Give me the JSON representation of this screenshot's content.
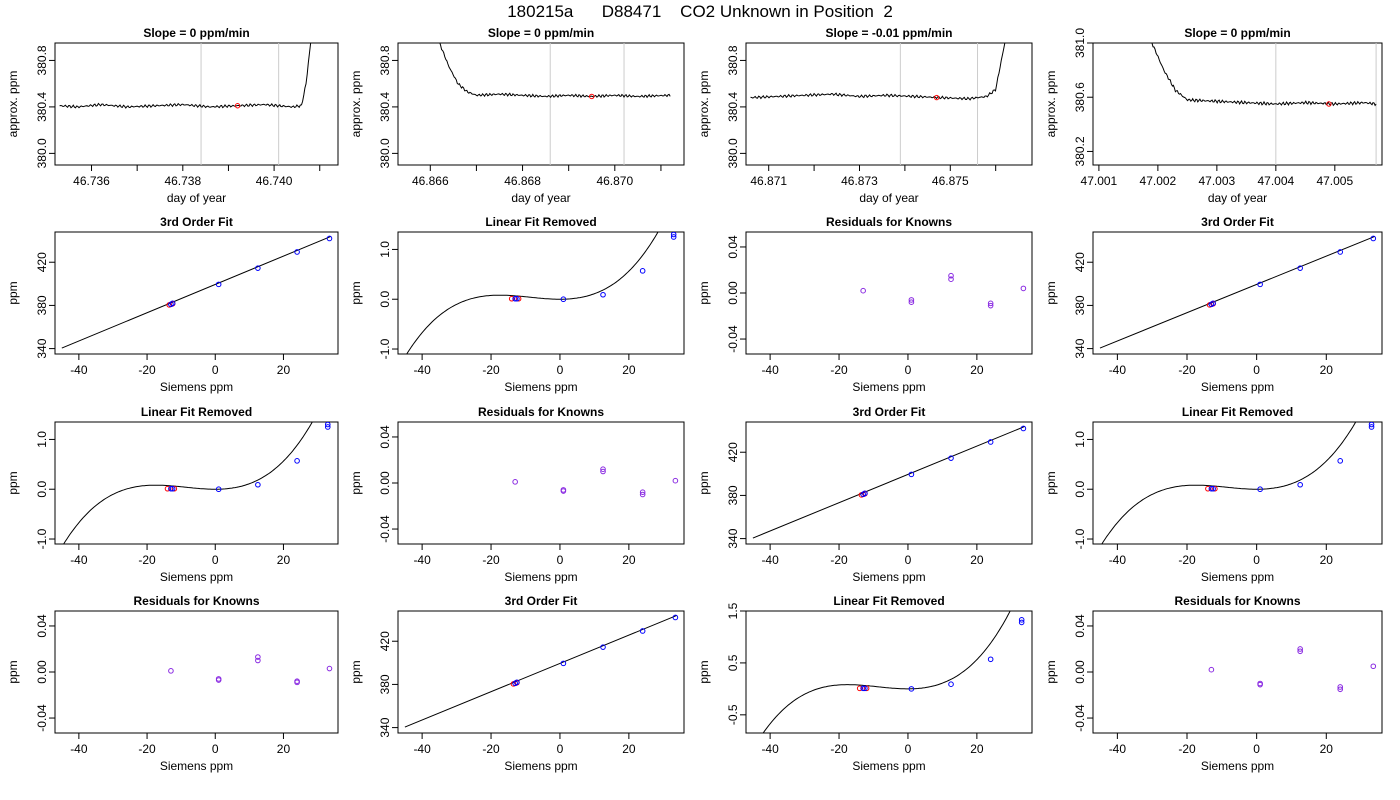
{
  "figure_title": "180215a      D88471    CO2 Unknown in Position  2",
  "chart_data": [
    {
      "type": "line",
      "title": "Slope =  0  ppm/min",
      "xlabel": "day of year",
      "ylabel": "approx. ppm",
      "xlim": [
        46.7352,
        46.7414
      ],
      "ylim": [
        379.9,
        380.95
      ],
      "xticks": [
        46.736,
        46.738,
        46.74
      ],
      "xtick_labels": [
        "46.736",
        "46.738",
        "46.740"
      ],
      "xminor_ticks": [
        46.737,
        46.739,
        46.741
      ],
      "yticks": [
        380.0,
        380.4,
        380.8
      ],
      "ytick_labels": [
        "380.0",
        "380.4",
        "380.8"
      ],
      "series": [
        {
          "x": [
            46.7353,
            46.7357,
            46.7362,
            46.7368,
            46.7374,
            46.738,
            46.7386,
            46.7392,
            46.7398,
            46.7404,
            46.7406,
            46.7407,
            46.7408
          ],
          "y": [
            380.41,
            380.4,
            380.42,
            380.4,
            380.41,
            380.42,
            380.4,
            380.41,
            380.42,
            380.4,
            380.41,
            380.6,
            380.95
          ]
        }
      ],
      "vlines": [
        46.7384,
        46.7401
      ],
      "marker": {
        "x": 46.7392,
        "y": 380.41
      }
    },
    {
      "type": "line",
      "title": "Slope =  0  ppm/min",
      "xlabel": "day of year",
      "ylabel": "approx. ppm",
      "xlim": [
        46.8653,
        46.8715
      ],
      "ylim": [
        379.9,
        380.95
      ],
      "xticks": [
        46.866,
        46.868,
        46.87
      ],
      "xtick_labels": [
        "46.866",
        "46.868",
        "46.870"
      ],
      "xminor_ticks": [
        46.867,
        46.869,
        46.871
      ],
      "yticks": [
        380.0,
        380.4,
        380.8
      ],
      "ytick_labels": [
        "380.0",
        "380.4",
        "380.8"
      ],
      "series": [
        {
          "x": [
            46.8662,
            46.8664,
            46.8666,
            46.8668,
            46.867,
            46.8675,
            46.868,
            46.8685,
            46.869,
            46.8695,
            46.87,
            46.8705,
            46.8712
          ],
          "y": [
            380.95,
            380.75,
            380.6,
            380.53,
            380.5,
            380.51,
            380.5,
            380.49,
            380.5,
            380.49,
            380.5,
            380.49,
            380.5
          ]
        }
      ],
      "vlines": [
        46.8686,
        46.8702
      ],
      "marker": {
        "x": 46.8695,
        "y": 380.49
      }
    },
    {
      "type": "line",
      "title": "Slope =  -0.01  ppm/min",
      "xlabel": "day of year",
      "ylabel": "approx. ppm",
      "xlim": [
        46.8705,
        46.8768
      ],
      "ylim": [
        379.9,
        380.95
      ],
      "xticks": [
        46.871,
        46.873,
        46.875
      ],
      "xtick_labels": [
        "46.871",
        "46.873",
        "46.875"
      ],
      "xminor_ticks": [
        46.872,
        46.874,
        46.876
      ],
      "yticks": [
        380.0,
        380.4,
        380.8
      ],
      "ytick_labels": [
        "380.0",
        "380.4",
        "380.8"
      ],
      "series": [
        {
          "x": [
            46.8706,
            46.8712,
            46.8718,
            46.8724,
            46.873,
            46.8736,
            46.8742,
            46.8748,
            46.8754,
            46.8758,
            46.876,
            46.8761,
            46.8762
          ],
          "y": [
            380.48,
            380.49,
            380.5,
            380.51,
            380.49,
            380.5,
            380.49,
            380.48,
            380.47,
            380.49,
            380.55,
            380.75,
            380.95
          ]
        }
      ],
      "vlines": [
        46.8739,
        46.8756
      ],
      "marker": {
        "x": 46.8747,
        "y": 380.48
      }
    },
    {
      "type": "line",
      "title": "Slope =  0  ppm/min",
      "xlabel": "day of year",
      "ylabel": "approx. ppm",
      "xlim": [
        47.0009,
        47.0058
      ],
      "ylim": [
        380.1,
        381.0
      ],
      "xticks": [
        47.001,
        47.002,
        47.003,
        47.004,
        47.005
      ],
      "xtick_labels": [
        "47.001",
        "47.002",
        "47.003",
        "47.004",
        "47.005"
      ],
      "xminor_ticks": [],
      "yticks": [
        380.2,
        380.6,
        381.0
      ],
      "ytick_labels": [
        "380.2",
        "380.6",
        "381.0"
      ],
      "series": [
        {
          "x": [
            47.0019,
            47.0021,
            47.0023,
            47.0025,
            47.003,
            47.0035,
            47.004,
            47.0045,
            47.005,
            47.0055,
            47.0057
          ],
          "y": [
            381.0,
            380.8,
            380.65,
            380.58,
            380.57,
            380.56,
            380.55,
            380.56,
            380.55,
            380.56,
            380.55
          ]
        }
      ],
      "vlines": [
        47.004,
        47.0057
      ],
      "marker": {
        "x": 47.0049,
        "y": 380.55
      }
    },
    {
      "type": "scatter",
      "title": "3rd Order Fit",
      "xlabel": "Siemens ppm",
      "ylabel": "ppm",
      "xlim": [
        -47,
        36
      ],
      "ylim": [
        335,
        448
      ],
      "xticks": [
        -40,
        -20,
        0,
        20
      ],
      "xtick_labels": [
        "-40",
        "-20",
        "0",
        "20"
      ],
      "yticks": [
        340,
        380,
        420
      ],
      "ytick_labels": [
        "340",
        "380",
        "420"
      ],
      "line": {
        "x": [
          -45,
          34
        ],
        "y": [
          340.5,
          444
        ]
      },
      "points": [
        {
          "x": -13,
          "y": 381
        },
        {
          "x": -12.5,
          "y": 382
        },
        {
          "x": 1,
          "y": 399.5
        },
        {
          "x": 12.5,
          "y": 414.5
        },
        {
          "x": 24,
          "y": 429.5
        },
        {
          "x": 33.5,
          "y": 442
        }
      ],
      "red_points": [
        {
          "x": -13.5,
          "y": 380.5
        },
        {
          "x": -12.5,
          "y": 381.5
        }
      ]
    },
    {
      "type": "scatter",
      "title": "Linear Fit Removed",
      "xlabel": "Siemens ppm",
      "ylabel": "ppm",
      "xlim": [
        -47,
        36
      ],
      "ylim": [
        -1.1,
        1.35
      ],
      "xticks": [
        -40,
        -20,
        0,
        20
      ],
      "xtick_labels": [
        "-40",
        "-20",
        "0",
        "20"
      ],
      "yticks": [
        -1.0,
        0.0,
        1.0
      ],
      "ytick_labels": [
        "-1.0",
        "0.0",
        "1.0"
      ],
      "poly": [
        0.0,
        0.0,
        0.0008,
        3.05e-05
      ],
      "points": [
        {
          "x": -13,
          "y": 0.01
        },
        {
          "x": -12.5,
          "y": 0.01
        },
        {
          "x": 1,
          "y": 0.0
        },
        {
          "x": 12.5,
          "y": 0.09
        },
        {
          "x": 24,
          "y": 0.57
        },
        {
          "x": 33,
          "y": 1.25
        },
        {
          "x": 33,
          "y": 1.3
        }
      ],
      "red_points": [
        {
          "x": -14,
          "y": 0.01
        },
        {
          "x": -12,
          "y": 0.01
        }
      ]
    },
    {
      "type": "scatter",
      "title": "Residuals for Knowns",
      "xlabel": "Siemens ppm",
      "ylabel": "ppm",
      "xlim": [
        -47,
        36
      ],
      "ylim": [
        -0.053,
        0.053
      ],
      "xticks": [
        -40,
        -20,
        0,
        20
      ],
      "xtick_labels": [
        "-40",
        "-20",
        "0",
        "20"
      ],
      "yticks": [
        -0.04,
        0.0,
        0.04
      ],
      "ytick_labels": [
        "-0.04",
        "0.00",
        "0.04"
      ],
      "points": [
        {
          "x": -13,
          "y": 0.002
        },
        {
          "x": 1,
          "y": -0.006
        },
        {
          "x": 1,
          "y": -0.008
        },
        {
          "x": 12.5,
          "y": 0.015
        },
        {
          "x": 12.5,
          "y": 0.012
        },
        {
          "x": 24,
          "y": -0.009
        },
        {
          "x": 24,
          "y": -0.011
        },
        {
          "x": 33.5,
          "y": 0.004
        }
      ]
    },
    {
      "type": "scatter",
      "title": "3rd Order Fit",
      "xlabel": "Siemens ppm",
      "ylabel": "ppm",
      "xlim": [
        -47,
        36
      ],
      "ylim": [
        335,
        448
      ],
      "xticks": [
        -40,
        -20,
        0,
        20
      ],
      "xtick_labels": [
        "-40",
        "-20",
        "0",
        "20"
      ],
      "yticks": [
        340,
        380,
        420
      ],
      "ytick_labels": [
        "340",
        "380",
        "420"
      ],
      "line": {
        "x": [
          -45,
          34
        ],
        "y": [
          340.5,
          444
        ]
      },
      "points": [
        {
          "x": -13,
          "y": 381
        },
        {
          "x": -12.5,
          "y": 382
        },
        {
          "x": 1,
          "y": 399.5
        },
        {
          "x": 12.5,
          "y": 414.5
        },
        {
          "x": 24,
          "y": 429.5
        },
        {
          "x": 33.5,
          "y": 442
        }
      ],
      "red_points": [
        {
          "x": -13.5,
          "y": 380.5
        },
        {
          "x": -12.5,
          "y": 381.5
        }
      ]
    },
    {
      "type": "scatter",
      "title": "Linear Fit Removed",
      "xlabel": "Siemens ppm",
      "ylabel": "ppm",
      "xlim": [
        -47,
        36
      ],
      "ylim": [
        -1.1,
        1.35
      ],
      "xticks": [
        -40,
        -20,
        0,
        20
      ],
      "xtick_labels": [
        "-40",
        "-20",
        "0",
        "20"
      ],
      "yticks": [
        -1.0,
        0.0,
        1.0
      ],
      "ytick_labels": [
        "-1.0",
        "0.0",
        "1.0"
      ],
      "poly": [
        0.0,
        0.0,
        0.0008,
        3.05e-05
      ],
      "points": [
        {
          "x": -13,
          "y": 0.01
        },
        {
          "x": -12.5,
          "y": 0.01
        },
        {
          "x": 1,
          "y": 0.0
        },
        {
          "x": 12.5,
          "y": 0.09
        },
        {
          "x": 24,
          "y": 0.57
        },
        {
          "x": 33,
          "y": 1.25
        },
        {
          "x": 33,
          "y": 1.3
        }
      ],
      "red_points": [
        {
          "x": -14,
          "y": 0.01
        },
        {
          "x": -12,
          "y": 0.01
        }
      ]
    },
    {
      "type": "scatter",
      "title": "Residuals for Knowns",
      "xlabel": "Siemens ppm",
      "ylabel": "ppm",
      "xlim": [
        -47,
        36
      ],
      "ylim": [
        -0.053,
        0.053
      ],
      "xticks": [
        -40,
        -20,
        0,
        20
      ],
      "xtick_labels": [
        "-40",
        "-20",
        "0",
        "20"
      ],
      "yticks": [
        -0.04,
        0.0,
        0.04
      ],
      "ytick_labels": [
        "-0.04",
        "0.00",
        "0.04"
      ],
      "points": [
        {
          "x": -13,
          "y": 0.001
        },
        {
          "x": 1,
          "y": -0.006
        },
        {
          "x": 1,
          "y": -0.007
        },
        {
          "x": 12.5,
          "y": 0.012
        },
        {
          "x": 12.5,
          "y": 0.01
        },
        {
          "x": 24,
          "y": -0.008
        },
        {
          "x": 24,
          "y": -0.01
        },
        {
          "x": 33.5,
          "y": 0.002
        }
      ]
    },
    {
      "type": "scatter",
      "title": "3rd Order Fit",
      "xlabel": "Siemens ppm",
      "ylabel": "ppm",
      "xlim": [
        -47,
        36
      ],
      "ylim": [
        335,
        448
      ],
      "xticks": [
        -40,
        -20,
        0,
        20
      ],
      "xtick_labels": [
        "-40",
        "-20",
        "0",
        "20"
      ],
      "yticks": [
        340,
        380,
        420
      ],
      "ytick_labels": [
        "340",
        "380",
        "420"
      ],
      "line": {
        "x": [
          -45,
          34
        ],
        "y": [
          340.5,
          444
        ]
      },
      "points": [
        {
          "x": -13,
          "y": 381
        },
        {
          "x": -12.5,
          "y": 382
        },
        {
          "x": 1,
          "y": 399.5
        },
        {
          "x": 12.5,
          "y": 414.5
        },
        {
          "x": 24,
          "y": 429.5
        },
        {
          "x": 33.5,
          "y": 442
        }
      ],
      "red_points": [
        {
          "x": -13.5,
          "y": 380.5
        },
        {
          "x": -12.5,
          "y": 381.5
        }
      ]
    },
    {
      "type": "scatter",
      "title": "Linear Fit Removed",
      "xlabel": "Siemens ppm",
      "ylabel": "ppm",
      "xlim": [
        -47,
        36
      ],
      "ylim": [
        -1.1,
        1.35
      ],
      "xticks": [
        -40,
        -20,
        0,
        20
      ],
      "xtick_labels": [
        "-40",
        "-20",
        "0",
        "20"
      ],
      "yticks": [
        -1.0,
        0.0,
        1.0
      ],
      "ytick_labels": [
        "-1.0",
        "0.0",
        "1.0"
      ],
      "poly": [
        0.0,
        0.0,
        0.0008,
        3.05e-05
      ],
      "points": [
        {
          "x": -13,
          "y": 0.01
        },
        {
          "x": -12.5,
          "y": 0.01
        },
        {
          "x": 1,
          "y": 0.0
        },
        {
          "x": 12.5,
          "y": 0.09
        },
        {
          "x": 24,
          "y": 0.57
        },
        {
          "x": 33,
          "y": 1.25
        },
        {
          "x": 33,
          "y": 1.3
        }
      ],
      "red_points": [
        {
          "x": -14,
          "y": 0.01
        },
        {
          "x": -12,
          "y": 0.01
        }
      ]
    },
    {
      "type": "scatter",
      "title": "Residuals for Knowns",
      "xlabel": "Siemens ppm",
      "ylabel": "ppm",
      "xlim": [
        -47,
        36
      ],
      "ylim": [
        -0.053,
        0.053
      ],
      "xticks": [
        -40,
        -20,
        0,
        20
      ],
      "xtick_labels": [
        "-40",
        "-20",
        "0",
        "20"
      ],
      "yticks": [
        -0.04,
        0.0,
        0.04
      ],
      "ytick_labels": [
        "-0.04",
        "0.00",
        "0.04"
      ],
      "points": [
        {
          "x": -13,
          "y": 0.001
        },
        {
          "x": 1,
          "y": -0.006
        },
        {
          "x": 1,
          "y": -0.007
        },
        {
          "x": 12.5,
          "y": 0.013
        },
        {
          "x": 12.5,
          "y": 0.01
        },
        {
          "x": 24,
          "y": -0.008
        },
        {
          "x": 24,
          "y": -0.009
        },
        {
          "x": 33.5,
          "y": 0.003
        }
      ]
    },
    {
      "type": "scatter",
      "title": "3rd Order Fit",
      "xlabel": "Siemens ppm",
      "ylabel": "ppm",
      "xlim": [
        -47,
        36
      ],
      "ylim": [
        335,
        448
      ],
      "xticks": [
        -40,
        -20,
        0,
        20
      ],
      "xtick_labels": [
        "-40",
        "-20",
        "0",
        "20"
      ],
      "yticks": [
        340,
        380,
        420
      ],
      "ytick_labels": [
        "340",
        "380",
        "420"
      ],
      "line": {
        "x": [
          -45,
          34
        ],
        "y": [
          340.5,
          444
        ]
      },
      "points": [
        {
          "x": -13,
          "y": 381
        },
        {
          "x": -12.5,
          "y": 382
        },
        {
          "x": 1,
          "y": 399.5
        },
        {
          "x": 12.5,
          "y": 414.5
        },
        {
          "x": 24,
          "y": 429.5
        },
        {
          "x": 33.5,
          "y": 442
        }
      ],
      "red_points": [
        {
          "x": -13.5,
          "y": 380.5
        },
        {
          "x": -12.5,
          "y": 381.5
        }
      ]
    },
    {
      "type": "scatter",
      "title": "Linear Fit Removed",
      "xlabel": "Siemens ppm",
      "ylabel": "ppm",
      "xlim": [
        -47,
        36
      ],
      "ylim": [
        -0.85,
        1.5
      ],
      "xticks": [
        -40,
        -20,
        0,
        20
      ],
      "xtick_labels": [
        "-40",
        "-20",
        "0",
        "20"
      ],
      "yticks": [
        -0.5,
        0.5,
        1.5
      ],
      "ytick_labels": [
        "-0.5",
        "0.5",
        "1.5"
      ],
      "poly": [
        0.0,
        0.0,
        0.0008,
        3.05e-05
      ],
      "points": [
        {
          "x": -13,
          "y": 0.01
        },
        {
          "x": -12.5,
          "y": 0.01
        },
        {
          "x": 1,
          "y": 0.0
        },
        {
          "x": 12.5,
          "y": 0.09
        },
        {
          "x": 24,
          "y": 0.57
        },
        {
          "x": 33,
          "y": 1.28
        },
        {
          "x": 33,
          "y": 1.33
        }
      ],
      "red_points": [
        {
          "x": -14,
          "y": 0.01
        },
        {
          "x": -12,
          "y": 0.01
        }
      ]
    },
    {
      "type": "scatter",
      "title": "Residuals for Knowns",
      "xlabel": "Siemens ppm",
      "ylabel": "ppm",
      "xlim": [
        -47,
        36
      ],
      "ylim": [
        -0.053,
        0.053
      ],
      "xticks": [
        -40,
        -20,
        0,
        20
      ],
      "xtick_labels": [
        "-40",
        "-20",
        "0",
        "20"
      ],
      "yticks": [
        -0.04,
        0.0,
        0.04
      ],
      "ytick_labels": [
        "-0.04",
        "0.00",
        "0.04"
      ],
      "points": [
        {
          "x": -13,
          "y": 0.002
        },
        {
          "x": 1,
          "y": -0.01
        },
        {
          "x": 1,
          "y": -0.011
        },
        {
          "x": 12.5,
          "y": 0.02
        },
        {
          "x": 12.5,
          "y": 0.018
        },
        {
          "x": 24,
          "y": -0.013
        },
        {
          "x": 24,
          "y": -0.015
        },
        {
          "x": 33.5,
          "y": 0.005
        }
      ]
    }
  ],
  "colors": {
    "axis": "#000000",
    "trace": "#000000",
    "vline": "#cccccc",
    "marker": "#ff0000",
    "points": "#0000ff",
    "points2": "#8a2be2"
  }
}
